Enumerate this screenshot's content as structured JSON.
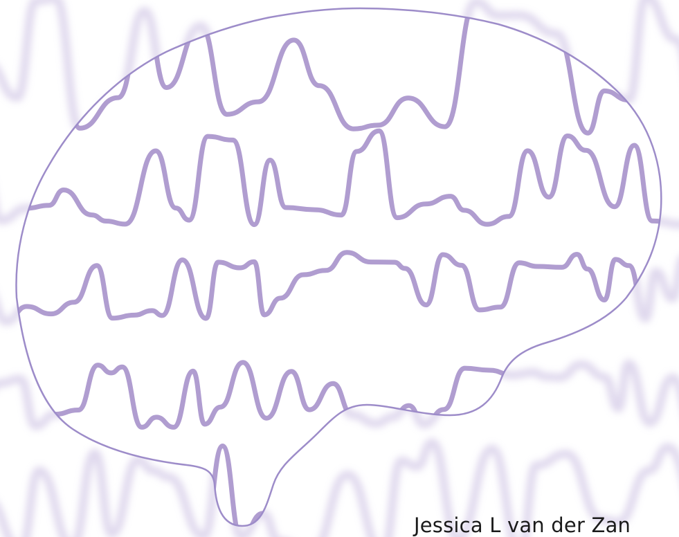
{
  "author": "Jessica L van der Zan",
  "colors": {
    "wave": "#b09dd0",
    "wave_blur": "#cbbfe2",
    "outline": "#9d8cc9",
    "background": "#ffffff"
  },
  "icons": [
    "brain-outline",
    "eeg-waves"
  ]
}
